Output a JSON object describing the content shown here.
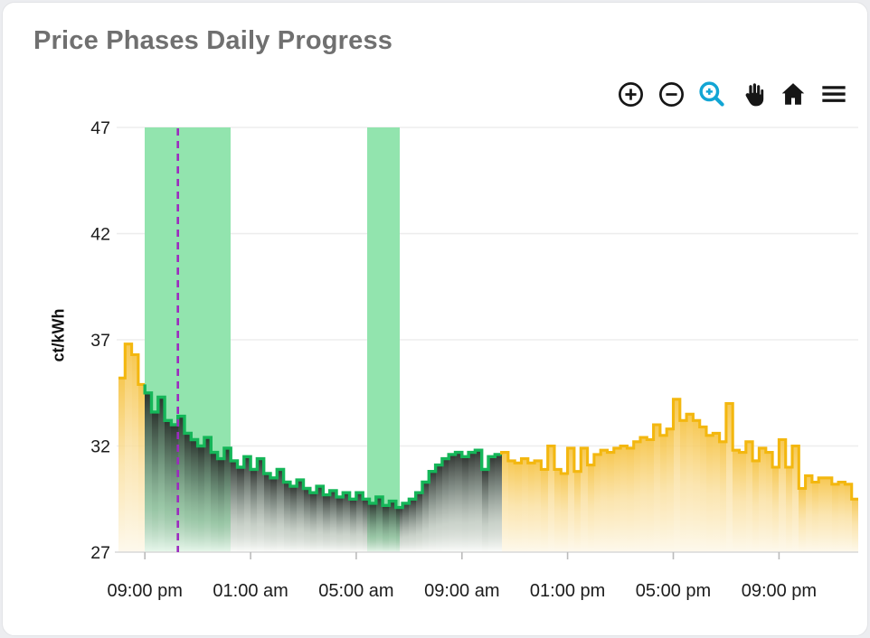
{
  "card": {
    "title": "Price Phases Daily Progress"
  },
  "toolbar": {
    "buttons": [
      "zoom-in",
      "zoom-out",
      "box-zoom",
      "pan",
      "home",
      "menu"
    ],
    "active_tool": "box-zoom",
    "icon_color": "#161616",
    "active_color": "#12a5d4"
  },
  "chart_data": {
    "type": "area",
    "title": "Price Phases Daily Progress",
    "xlabel": "",
    "ylabel": "ct/kWh",
    "ylim": [
      27,
      47
    ],
    "yticks": [
      27,
      32,
      37,
      42,
      47
    ],
    "x_start": "20:00",
    "x_end": "24:00 (+1 day)",
    "interval_minutes": 15,
    "x_ticks": [
      {
        "hour": 21,
        "label": "09:00 pm"
      },
      {
        "hour": 25,
        "label": "01:00 am"
      },
      {
        "hour": 29,
        "label": "05:00 am"
      },
      {
        "hour": 33,
        "label": "09:00 am"
      },
      {
        "hour": 37,
        "label": "01:00 pm"
      },
      {
        "hour": 41,
        "label": "05:00 pm"
      },
      {
        "hour": 45,
        "label": "09:00 pm"
      }
    ],
    "times": [
      "20:00",
      "20:15",
      "20:30",
      "20:45",
      "21:00",
      "21:15",
      "21:30",
      "21:45",
      "22:00",
      "22:15",
      "22:30",
      "22:45",
      "23:00",
      "23:15",
      "23:30",
      "23:45",
      "00:00",
      "00:15",
      "00:30",
      "00:45",
      "01:00",
      "01:15",
      "01:30",
      "01:45",
      "02:00",
      "02:15",
      "02:30",
      "02:45",
      "03:00",
      "03:15",
      "03:30",
      "03:45",
      "04:00",
      "04:15",
      "04:30",
      "04:45",
      "05:00",
      "05:15",
      "05:30",
      "05:45",
      "06:00",
      "06:15",
      "06:30",
      "06:45",
      "07:00",
      "07:15",
      "07:30",
      "07:45",
      "08:00",
      "08:15",
      "08:30",
      "08:45",
      "09:00",
      "09:15",
      "09:30",
      "09:45",
      "10:00",
      "10:15",
      "10:30",
      "10:45",
      "11:00",
      "11:15",
      "11:30",
      "11:45",
      "12:00",
      "12:15",
      "12:30",
      "12:45",
      "13:00",
      "13:15",
      "13:30",
      "13:45",
      "14:00",
      "14:15",
      "14:30",
      "14:45",
      "15:00",
      "15:15",
      "15:30",
      "15:45",
      "16:00",
      "16:15",
      "16:30",
      "16:45",
      "17:00",
      "17:15",
      "17:30",
      "17:45",
      "18:00",
      "18:15",
      "18:30",
      "18:45",
      "19:00",
      "19:15",
      "19:30",
      "19:45",
      "20:00",
      "20:15",
      "20:30",
      "20:45",
      "21:00",
      "21:15",
      "21:30",
      "21:45",
      "22:00",
      "22:15",
      "22:30",
      "22:45",
      "23:00",
      "23:15",
      "23:30",
      "23:45"
    ],
    "values": [
      35.2,
      36.8,
      36.3,
      34.9,
      34.5,
      33.6,
      34.3,
      33.2,
      33.0,
      33.4,
      32.6,
      32.3,
      32.0,
      32.4,
      31.7,
      31.4,
      31.9,
      31.3,
      31.0,
      31.5,
      30.9,
      31.4,
      30.7,
      30.5,
      30.9,
      30.3,
      30.1,
      30.4,
      30.0,
      29.8,
      30.1,
      29.7,
      29.9,
      29.6,
      29.8,
      29.5,
      29.8,
      29.5,
      29.3,
      29.6,
      29.2,
      29.4,
      29.1,
      29.3,
      29.5,
      29.8,
      30.3,
      30.8,
      31.1,
      31.4,
      31.6,
      31.7,
      31.5,
      31.7,
      31.8,
      30.9,
      31.5,
      31.6,
      31.7,
      31.3,
      31.2,
      31.4,
      31.2,
      31.3,
      30.9,
      32.0,
      30.9,
      30.7,
      31.9,
      30.8,
      31.9,
      31.1,
      31.6,
      31.8,
      31.7,
      31.9,
      32.0,
      31.9,
      32.2,
      32.4,
      32.3,
      33.0,
      32.5,
      32.8,
      34.2,
      33.2,
      33.5,
      33.2,
      32.9,
      32.5,
      32.6,
      32.2,
      34.0,
      31.8,
      31.7,
      32.2,
      31.3,
      31.9,
      31.7,
      31.0,
      32.3,
      31.0,
      32.0,
      30.0,
      30.6,
      30.3,
      30.5,
      30.5,
      30.2,
      30.3,
      30.2,
      29.5
    ],
    "phases": [
      {
        "name": "high-price-phase",
        "color": "yellow",
        "from_index": 0,
        "to_index": 3
      },
      {
        "name": "low-price-phase",
        "color": "green",
        "from_index": 4,
        "to_index": 57
      },
      {
        "name": "high-price-phase",
        "color": "yellow",
        "from_index": 58,
        "to_index": 111
      }
    ],
    "bands": [
      {
        "from_hour": 21.0,
        "to_hour": 24.25,
        "from": "21:00",
        "to": "00:15"
      },
      {
        "from_hour": 29.4,
        "to_hour": 30.65,
        "from": "05:25",
        "to": "06:40"
      }
    ],
    "now_line": {
      "hour": 22.25,
      "time": "22:15",
      "color": "#9c2bbf",
      "style": "dashed"
    },
    "colors": {
      "yellow": "#f3b70f",
      "green": "#15b659",
      "band": "#92e4ae",
      "grid": "#ededed",
      "axis_line": "#d8d8d8",
      "tick_mark": "#bbbbbb",
      "text": "#1c1c1c"
    },
    "legend": "none",
    "grid": "horizontal-only"
  }
}
